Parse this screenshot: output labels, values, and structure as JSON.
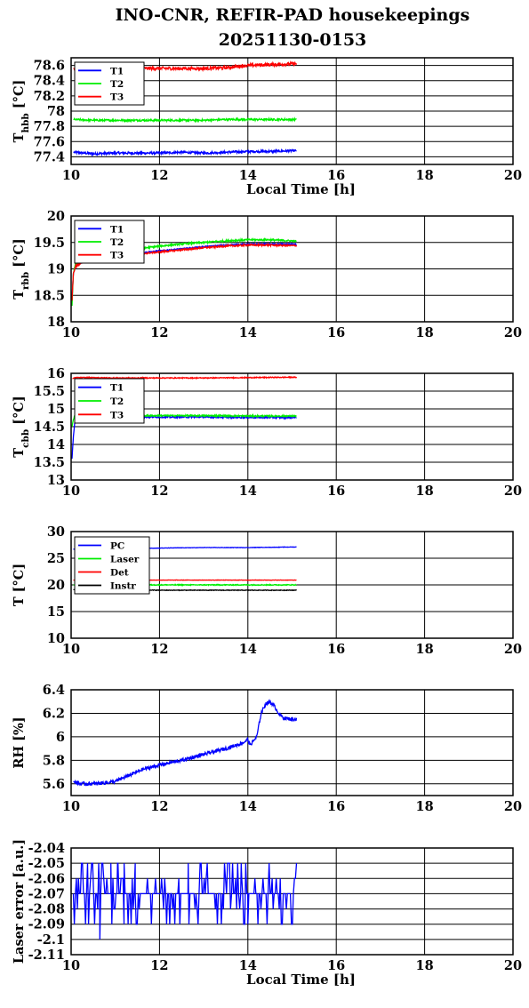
{
  "page": {
    "title_line1": "INO-CNR, REFIR-PAD housekeepings",
    "title_line2": "20251130-0153"
  },
  "colors": {
    "blue": "#0000ff",
    "green": "#00ee00",
    "red": "#ff0000",
    "black": "#000000"
  },
  "chart_data": [
    {
      "type": "line",
      "xlim": [
        10,
        20
      ],
      "xticks": [
        10,
        12,
        14,
        16,
        18,
        20
      ],
      "ylim": [
        77.3,
        78.7
      ],
      "yticks": [
        "77.4",
        "77.6",
        "77.8",
        "78",
        "78.2",
        "78.4",
        "78.6"
      ],
      "ylabel_main": "T",
      "ylabel_sub": "hbb",
      "ylabel_unit": "[°C]",
      "xlabel": "Local Time [h]",
      "grid": true,
      "legend": "top-left",
      "series": [
        {
          "name": "T1",
          "color": "blue",
          "x": [
            10.05,
            10.5,
            11.0,
            11.5,
            12.0,
            12.5,
            13.0,
            13.5,
            14.0,
            14.5,
            15.0,
            15.1
          ],
          "y": [
            77.46,
            77.44,
            77.45,
            77.45,
            77.45,
            77.46,
            77.45,
            77.46,
            77.47,
            77.47,
            77.48,
            77.48
          ],
          "noise": 0.015
        },
        {
          "name": "T2",
          "color": "green",
          "x": [
            10.05,
            10.5,
            11.0,
            11.5,
            12.0,
            12.5,
            13.0,
            13.5,
            14.0,
            14.5,
            15.0,
            15.1
          ],
          "y": [
            77.89,
            77.88,
            77.88,
            77.88,
            77.88,
            77.88,
            77.88,
            77.89,
            77.89,
            77.89,
            77.89,
            77.89
          ],
          "noise": 0.012
        },
        {
          "name": "T3",
          "color": "red",
          "x": [
            10.05,
            10.5,
            11.0,
            11.5,
            12.0,
            12.5,
            13.0,
            13.5,
            14.0,
            14.5,
            15.0,
            15.1
          ],
          "y": [
            78.56,
            78.55,
            78.55,
            78.56,
            78.56,
            78.56,
            78.56,
            78.57,
            78.6,
            78.61,
            78.62,
            78.62
          ],
          "noise": 0.022
        }
      ]
    },
    {
      "type": "line",
      "xlim": [
        10,
        20
      ],
      "xticks": [
        10,
        12,
        14,
        16,
        18,
        20
      ],
      "ylim": [
        18,
        20
      ],
      "yticks": [
        "18",
        "18.5",
        "19",
        "19.5",
        "20"
      ],
      "ylabel_main": "T",
      "ylabel_sub": "rbb",
      "ylabel_unit": "[°C]",
      "grid": true,
      "legend": "top-left",
      "series": [
        {
          "name": "T1",
          "color": "blue",
          "x": [
            10.02,
            10.05,
            10.1,
            10.3,
            11.0,
            11.5,
            12.0,
            12.5,
            13.0,
            13.5,
            14.0,
            14.5,
            15.0,
            15.1
          ],
          "y": [
            18.4,
            18.9,
            19.05,
            19.15,
            19.27,
            19.3,
            19.34,
            19.38,
            19.42,
            19.45,
            19.47,
            19.47,
            19.47,
            19.46
          ],
          "noise": 0.01
        },
        {
          "name": "T2",
          "color": "green",
          "x": [
            10.02,
            10.05,
            10.1,
            10.3,
            11.0,
            11.5,
            12.0,
            12.5,
            13.0,
            13.5,
            14.0,
            14.5,
            15.0,
            15.1
          ],
          "y": [
            18.3,
            18.9,
            19.1,
            19.2,
            19.32,
            19.38,
            19.43,
            19.47,
            19.5,
            19.53,
            19.55,
            19.55,
            19.53,
            19.52
          ],
          "noise": 0.015
        },
        {
          "name": "T3",
          "color": "red",
          "x": [
            10.02,
            10.05,
            10.1,
            10.3,
            11.0,
            11.5,
            12.0,
            12.5,
            13.0,
            13.5,
            14.0,
            14.5,
            15.0,
            15.1
          ],
          "y": [
            18.4,
            18.9,
            19.05,
            19.15,
            19.25,
            19.28,
            19.32,
            19.36,
            19.4,
            19.43,
            19.45,
            19.45,
            19.44,
            19.44
          ],
          "noise": 0.015
        }
      ]
    },
    {
      "type": "line",
      "xlim": [
        10,
        20
      ],
      "xticks": [
        10,
        12,
        14,
        16,
        18,
        20
      ],
      "ylim": [
        13,
        16
      ],
      "yticks": [
        "13",
        "13.5",
        "14",
        "14.5",
        "15",
        "15.5",
        "16"
      ],
      "ylabel_main": "T",
      "ylabel_sub": "cbb",
      "ylabel_unit": "[°C]",
      "grid": true,
      "legend": "top-left",
      "series": [
        {
          "name": "T1",
          "color": "blue",
          "x": [
            10.02,
            10.05,
            10.08,
            10.12,
            10.2,
            10.5,
            11.0,
            12.0,
            13.0,
            14.0,
            15.0,
            15.1
          ],
          "y": [
            13.6,
            14.2,
            14.6,
            14.75,
            14.78,
            14.77,
            14.77,
            14.77,
            14.77,
            14.76,
            14.76,
            14.76
          ],
          "noise": 0.02
        },
        {
          "name": "T2",
          "color": "green",
          "x": [
            10.02,
            10.05,
            10.08,
            10.12,
            10.2,
            10.5,
            11.0,
            12.0,
            13.0,
            14.0,
            15.0,
            15.1
          ],
          "y": [
            14.5,
            14.7,
            14.8,
            14.82,
            14.82,
            14.81,
            14.81,
            14.81,
            14.81,
            14.8,
            14.8,
            14.8
          ],
          "noise": 0.02
        },
        {
          "name": "T3",
          "color": "red",
          "x": [
            10.03,
            10.1,
            10.5,
            11.0,
            12.0,
            13.0,
            14.0,
            15.0,
            15.1
          ],
          "y": [
            15.85,
            15.88,
            15.88,
            15.87,
            15.87,
            15.87,
            15.88,
            15.89,
            15.89
          ],
          "noise": 0.012
        }
      ]
    },
    {
      "type": "line",
      "xlim": [
        10,
        20
      ],
      "xticks": [
        10,
        12,
        14,
        16,
        18,
        20
      ],
      "ylim": [
        10,
        30
      ],
      "yticks": [
        "10",
        "15",
        "20",
        "25",
        "30"
      ],
      "ylabel_main": "T [°C]",
      "grid": true,
      "legend": "top-left",
      "series": [
        {
          "name": "PC",
          "color": "blue",
          "x": [
            10.05,
            11.0,
            12.0,
            13.0,
            14.0,
            15.0,
            15.1
          ],
          "y": [
            26.7,
            26.8,
            26.9,
            27.0,
            27.0,
            27.1,
            27.1
          ],
          "noise": 0.03
        },
        {
          "name": "Laser",
          "color": "green",
          "x": [
            10.05,
            11.0,
            12.0,
            13.0,
            14.0,
            15.0,
            15.1
          ],
          "y": [
            20.0,
            20.0,
            20.0,
            20.0,
            20.0,
            20.0,
            20.0
          ],
          "noise": 0.08
        },
        {
          "name": "Det",
          "color": "red",
          "x": [
            10.05,
            11.0,
            12.0,
            13.0,
            14.0,
            15.0,
            15.1
          ],
          "y": [
            20.9,
            20.9,
            20.9,
            20.9,
            20.9,
            20.9,
            20.9
          ],
          "noise": 0.03
        },
        {
          "name": "Instr",
          "color": "black",
          "x": [
            10.05,
            11.0,
            12.0,
            13.0,
            14.0,
            15.0,
            15.1
          ],
          "y": [
            19.1,
            19.1,
            19.0,
            19.0,
            19.0,
            19.0,
            19.0
          ],
          "noise": 0.05
        }
      ]
    },
    {
      "type": "line",
      "xlim": [
        10,
        20
      ],
      "xticks": [
        10,
        12,
        14,
        16,
        18,
        20
      ],
      "ylim": [
        5.5,
        6.4
      ],
      "yticks": [
        "5.6",
        "5.8",
        "6",
        "6.2",
        "6.4"
      ],
      "ylabel_main": "RH [%]",
      "grid": true,
      "legend": "none",
      "series": [
        {
          "name": "",
          "color": "blue",
          "x": [
            10.05,
            10.2,
            10.5,
            10.8,
            11.0,
            11.3,
            11.6,
            12.0,
            12.5,
            13.0,
            13.5,
            13.9,
            14.0,
            14.05,
            14.2,
            14.3,
            14.4,
            14.5,
            14.6,
            14.7,
            14.8,
            15.0,
            15.1
          ],
          "y": [
            5.62,
            5.6,
            5.6,
            5.61,
            5.62,
            5.67,
            5.72,
            5.76,
            5.8,
            5.85,
            5.9,
            5.95,
            5.98,
            5.93,
            6.0,
            6.2,
            6.28,
            6.3,
            6.26,
            6.2,
            6.16,
            6.15,
            6.15
          ],
          "noise": 0.015
        }
      ]
    },
    {
      "type": "line",
      "xlim": [
        10,
        20
      ],
      "xticks": [
        10,
        12,
        14,
        16,
        18,
        20
      ],
      "ylim": [
        -2.11,
        -2.04
      ],
      "yticks": [
        "-2.11",
        "-2.1",
        "-2.09",
        "-2.08",
        "-2.07",
        "-2.06",
        "-2.05",
        "-2.04"
      ],
      "ylabel_main": "Laser error [a.u.]",
      "xlabel": "Local Time [h]",
      "grid": true,
      "legend": "none",
      "series": [
        {
          "name": "",
          "color": "blue",
          "step": true,
          "xstart": 10.05,
          "xend": 15.1,
          "levels": [
            -2.05,
            -2.06,
            -2.07,
            -2.08,
            -2.09
          ],
          "spikes": [
            [
              10.65,
              -2.1
            ],
            [
              10.9,
              -2.05
            ],
            [
              11.05,
              -2.05
            ],
            [
              11.2,
              -2.05
            ],
            [
              11.45,
              -2.05
            ],
            [
              12.65,
              -2.05
            ],
            [
              13.85,
              -2.05
            ],
            [
              14.0,
              -2.09
            ]
          ]
        }
      ]
    }
  ]
}
